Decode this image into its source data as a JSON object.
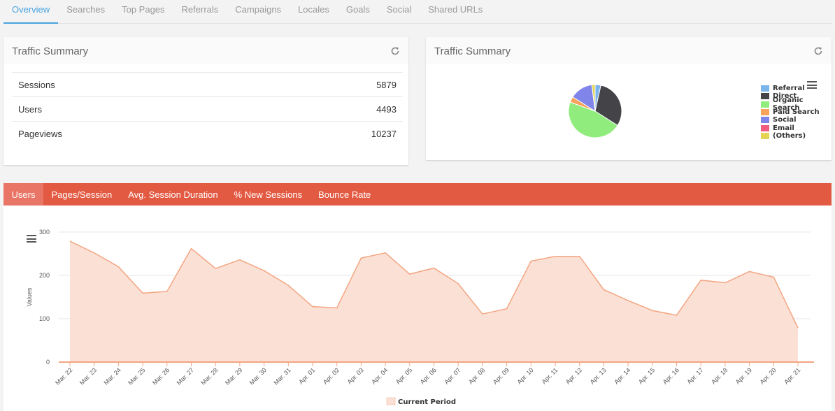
{
  "nav_tabs": [
    {
      "label": "Overview",
      "active": true
    },
    {
      "label": "Searches",
      "active": false
    },
    {
      "label": "Top Pages",
      "active": false
    },
    {
      "label": "Referrals",
      "active": false
    },
    {
      "label": "Campaigns",
      "active": false
    },
    {
      "label": "Locales",
      "active": false
    },
    {
      "label": "Goals",
      "active": false
    },
    {
      "label": "Social",
      "active": false
    },
    {
      "label": "Shared URLs",
      "active": false
    }
  ],
  "summary_panel": {
    "title": "Traffic Summary",
    "rows": [
      {
        "label": "Sessions",
        "value": "5879"
      },
      {
        "label": "Users",
        "value": "4493"
      },
      {
        "label": "Pageviews",
        "value": "10237"
      }
    ]
  },
  "pie_panel": {
    "title": "Traffic Summary",
    "chart_data": {
      "type": "pie",
      "legend_position": "right",
      "slices": [
        {
          "label": "Referral",
          "value": 3.5,
          "color": "#7cb5ec"
        },
        {
          "label": "Direct",
          "value": 30.5,
          "color": "#434348"
        },
        {
          "label": "Organic Search",
          "value": 46.5,
          "color": "#90ed7d"
        },
        {
          "label": "Paid Search",
          "value": 3.5,
          "color": "#f7a35c"
        },
        {
          "label": "Social",
          "value": 14.0,
          "color": "#8085e9"
        },
        {
          "label": "Email",
          "value": 0.0,
          "color": "#f15c80"
        },
        {
          "label": "(Others)",
          "value": 2.0,
          "color": "#e4d354"
        }
      ]
    }
  },
  "metric_tabs": [
    {
      "label": "Users",
      "active": true
    },
    {
      "label": "Pages/Session",
      "active": false
    },
    {
      "label": "Avg. Session Duration",
      "active": false
    },
    {
      "label": "% New Sessions",
      "active": false
    },
    {
      "label": "Bounce Rate",
      "active": false
    }
  ],
  "chart_data": {
    "type": "area",
    "ylabel": "Values",
    "xlabel": "",
    "ylim": [
      0,
      300
    ],
    "yticks": [
      0,
      100,
      200,
      300
    ],
    "grid": true,
    "legend_position": "bottom",
    "categories": [
      "Mar. 22",
      "Mar. 23",
      "Mar. 24",
      "Mar. 25",
      "Mar. 26",
      "Mar. 27",
      "Mar. 28",
      "Mar. 29",
      "Mar. 30",
      "Mar. 31",
      "Apr. 01",
      "Apr. 02",
      "Apr. 03",
      "Apr. 04",
      "Apr. 05",
      "Apr. 06",
      "Apr. 07",
      "Apr. 08",
      "Apr. 09",
      "Apr. 10",
      "Apr. 11",
      "Apr. 12",
      "Apr. 13",
      "Apr. 14",
      "Apr. 15",
      "Apr. 16",
      "Apr. 17",
      "Apr. 18",
      "Apr. 19",
      "Apr. 20",
      "Apr. 21"
    ],
    "series": [
      {
        "name": "Current Period",
        "color": "#f4a582",
        "fill": "#fbe1d5",
        "values": [
          279,
          252,
          220,
          159,
          163,
          262,
          216,
          236,
          211,
          177,
          128,
          125,
          240,
          252,
          203,
          217,
          181,
          111,
          123,
          233,
          244,
          244,
          167,
          142,
          119,
          108,
          189,
          183,
          209,
          196,
          79
        ]
      }
    ]
  }
}
